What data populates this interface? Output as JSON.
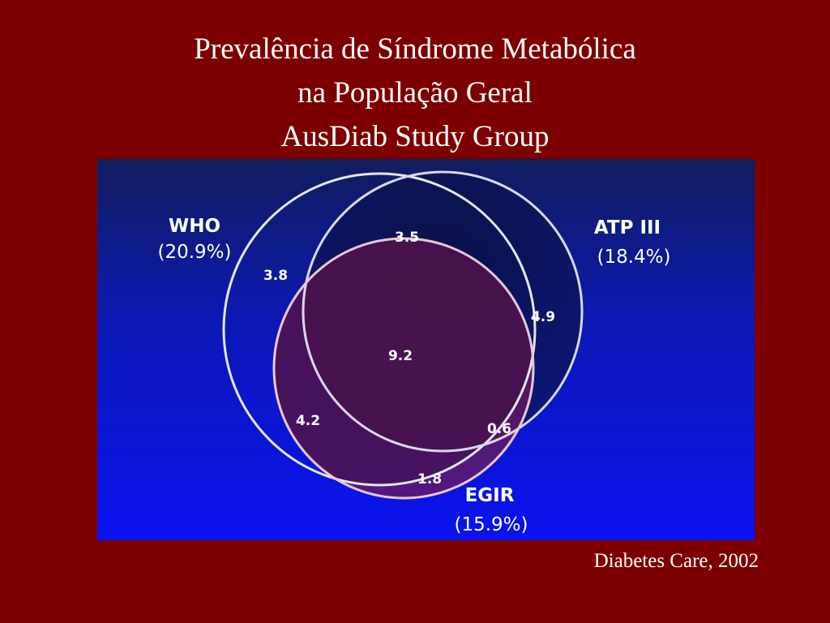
{
  "title": {
    "line1": "Prevalência de Síndrome Metabólica",
    "line2": "na População Geral",
    "line3": "AusDiab Study Group"
  },
  "sets": {
    "who": {
      "name": "WHO",
      "pct": "(20.9%)"
    },
    "atp": {
      "name": "ATP III",
      "pct": "(18.4%)"
    },
    "egir": {
      "name": "EGIR",
      "pct": "(15.9%)"
    }
  },
  "regions": {
    "who_atp": "3.5",
    "who_only": "3.8",
    "atp_only": "4.9",
    "all_three": "9.2",
    "who_egir": "4.2",
    "atp_egir": "0.6",
    "egir_only": "1.8"
  },
  "citation": "Diabetes Care, 2002",
  "colors": {
    "background": "#7d0000",
    "panel_top": "#101d5c",
    "panel_bottom": "#0a12f0",
    "egir_fill": "#6b1a5e",
    "atp_fill": "#0a1045"
  }
}
